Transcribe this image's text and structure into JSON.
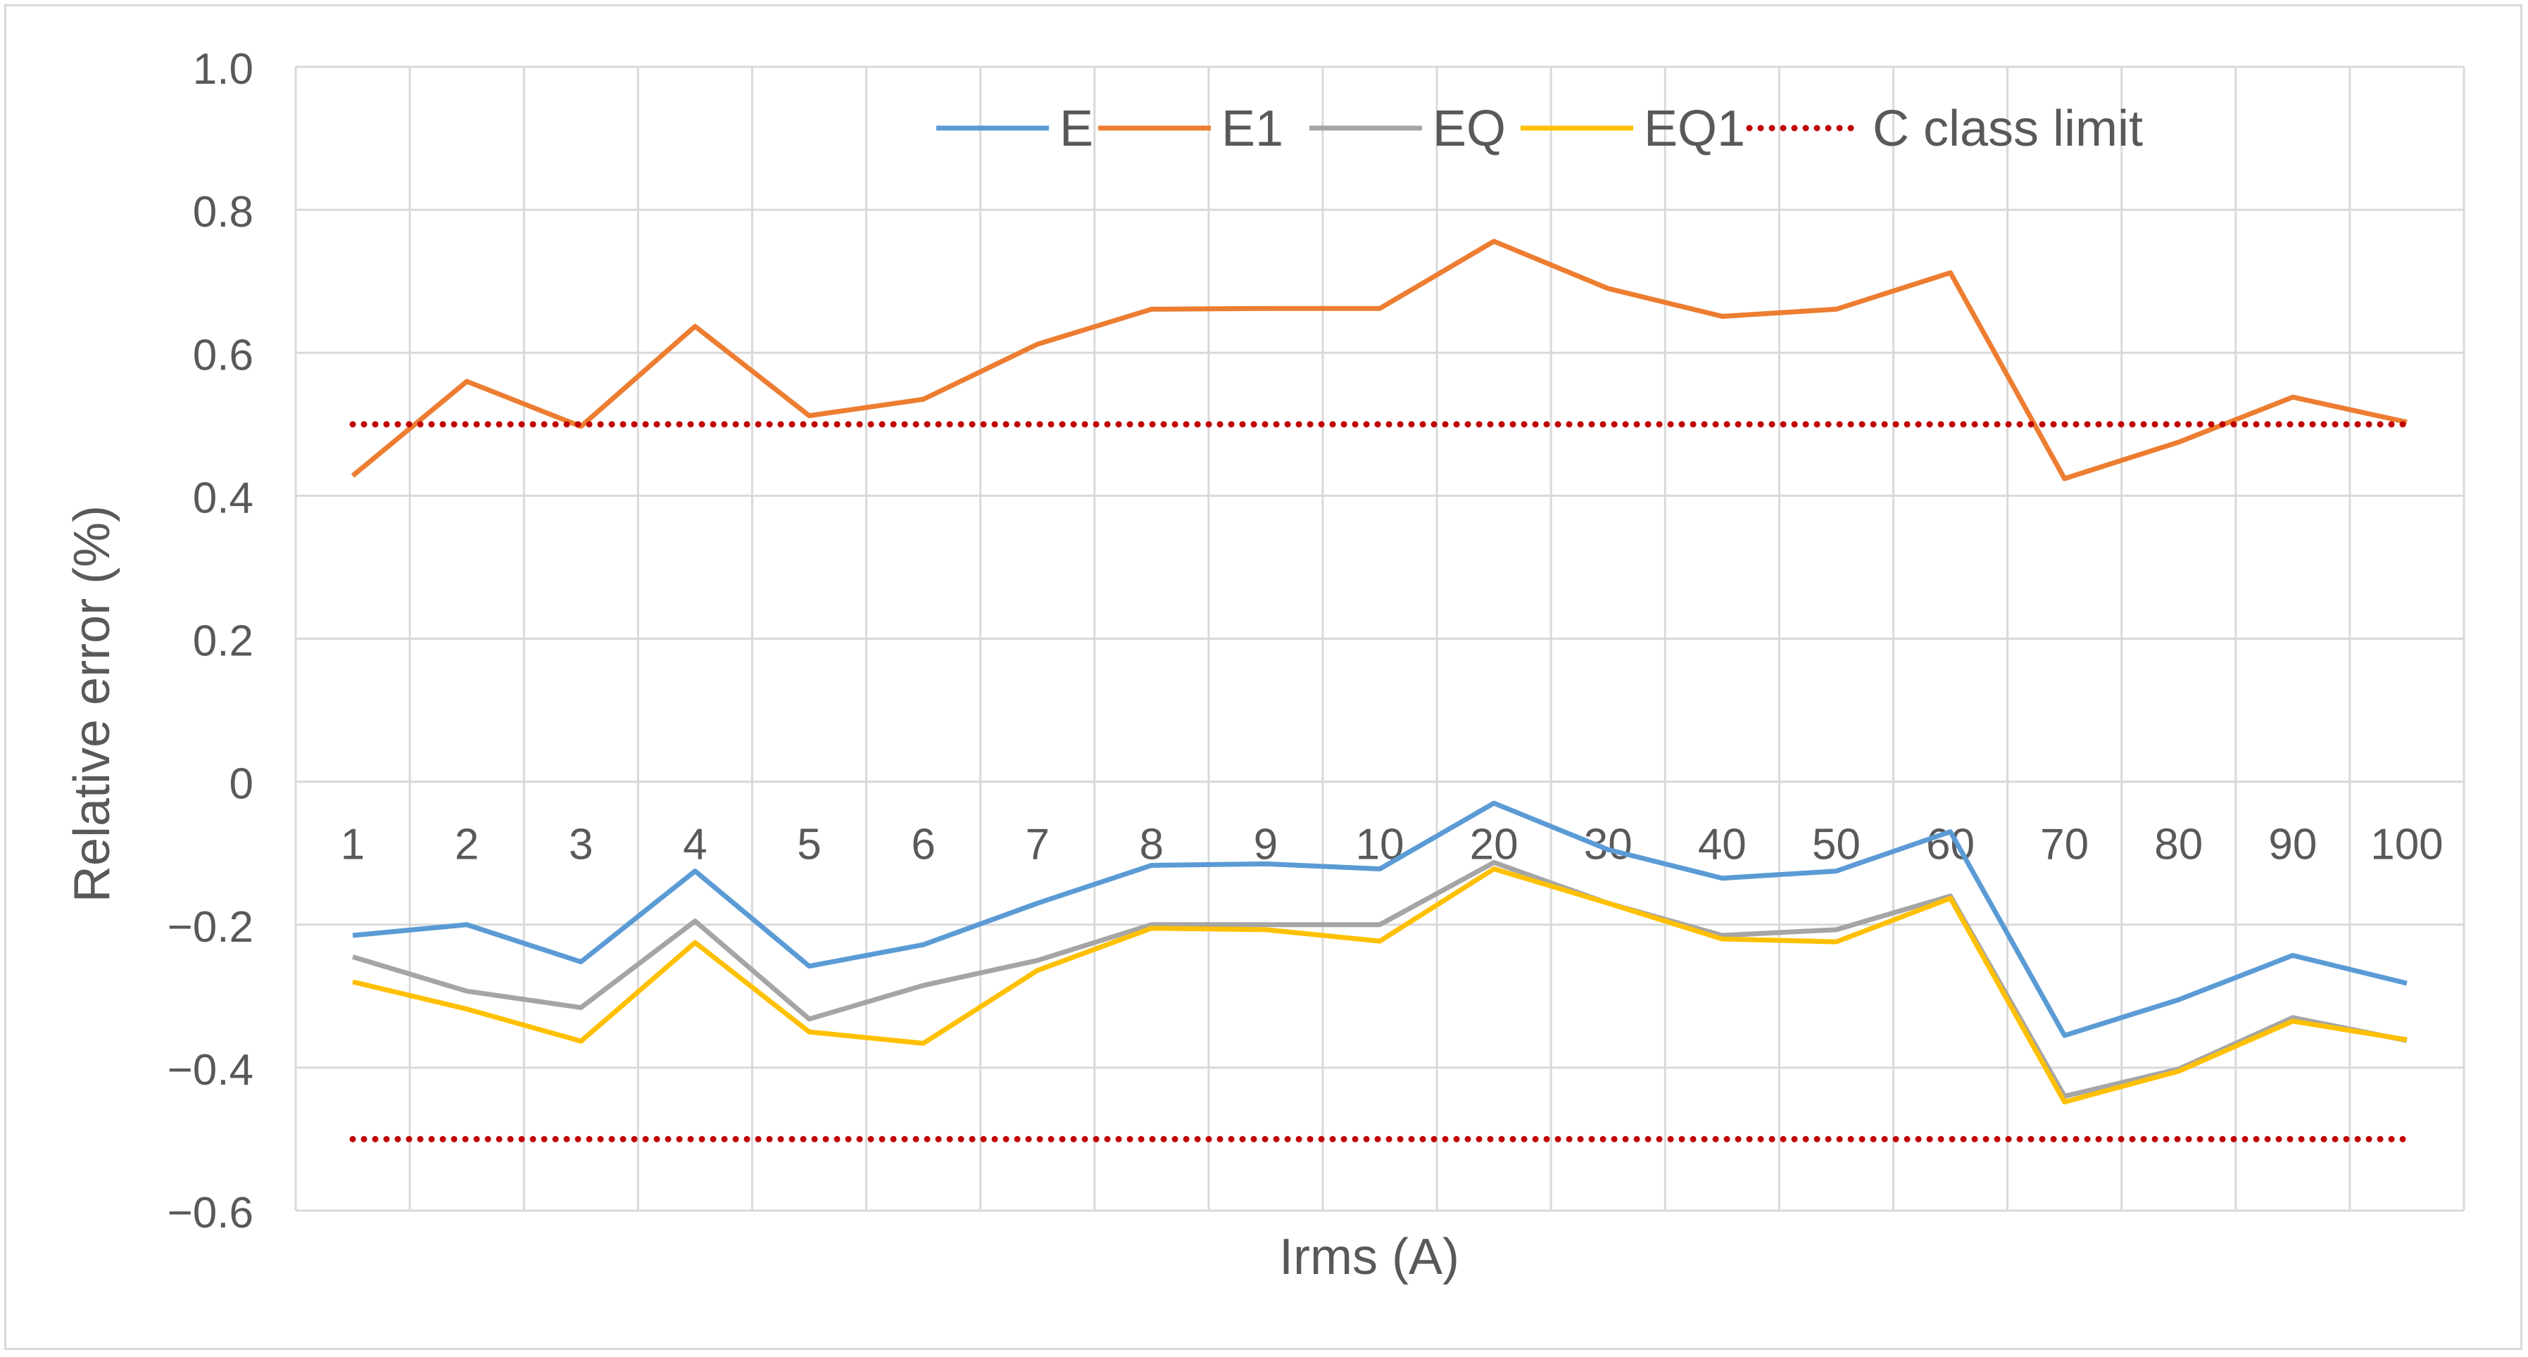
{
  "chart_data": {
    "type": "line",
    "xlabel": "Irms (A)",
    "ylabel": "Relative error (%)",
    "ylim": [
      -0.6,
      1.0
    ],
    "yticks": [
      1.0,
      0.8,
      0.6,
      0.4,
      0.2,
      0,
      -0.2,
      -0.4,
      -0.6
    ],
    "ytick_labels": [
      "1.0",
      "0.8",
      "0.6",
      "0.4",
      "0.2",
      "0",
      "−0.2",
      "−0.4",
      "−0.6"
    ],
    "categories": [
      "1",
      "2",
      "3",
      "4",
      "5",
      "6",
      "7",
      "8",
      "9",
      "10",
      "20",
      "30",
      "40",
      "50",
      "60",
      "70",
      "80",
      "90",
      "100"
    ],
    "grid": true,
    "legend_position": "top",
    "series": [
      {
        "name": "E",
        "color": "#5b9bd5",
        "style": "solid",
        "values": [
          -0.215,
          -0.2,
          -0.252,
          -0.125,
          -0.258,
          -0.228,
          -0.17,
          -0.117,
          -0.115,
          -0.122,
          -0.03,
          -0.095,
          -0.135,
          -0.125,
          -0.07,
          -0.355,
          -0.305,
          -0.243,
          -0.282
        ]
      },
      {
        "name": "E1",
        "color": "#ed7d31",
        "style": "solid",
        "values": [
          0.428,
          0.56,
          0.497,
          0.637,
          0.512,
          0.535,
          0.612,
          0.661,
          0.662,
          0.662,
          0.756,
          0.69,
          0.651,
          0.661,
          0.712,
          0.424,
          0.475,
          0.538,
          0.503
        ]
      },
      {
        "name": "EQ",
        "color": "#a5a5a5",
        "style": "solid",
        "values": [
          -0.245,
          -0.293,
          -0.316,
          -0.195,
          -0.332,
          -0.285,
          -0.25,
          -0.2,
          -0.2,
          -0.2,
          -0.113,
          -0.17,
          -0.215,
          -0.207,
          -0.16,
          -0.44,
          -0.402,
          -0.33,
          -0.362
        ]
      },
      {
        "name": "EQ1",
        "color": "#ffc000",
        "style": "solid",
        "values": [
          -0.28,
          -0.318,
          -0.363,
          -0.225,
          -0.35,
          -0.366,
          -0.264,
          -0.205,
          -0.207,
          -0.223,
          -0.122,
          -0.17,
          -0.22,
          -0.224,
          -0.163,
          -0.448,
          -0.405,
          -0.335,
          -0.361
        ]
      },
      {
        "name": "C class limit",
        "color": "#c00000",
        "style": "dotted",
        "values": [
          0.5,
          0.5,
          0.5,
          0.5,
          0.5,
          0.5,
          0.5,
          0.5,
          0.5,
          0.5,
          0.5,
          0.5,
          0.5,
          0.5,
          0.5,
          0.5,
          0.5,
          0.5,
          0.5
        ]
      },
      {
        "name": "C class limit",
        "color": "#c00000",
        "style": "dotted",
        "in_legend": false,
        "values": [
          -0.5,
          -0.5,
          -0.5,
          -0.5,
          -0.5,
          -0.5,
          -0.5,
          -0.5,
          -0.5,
          -0.5,
          -0.5,
          -0.5,
          -0.5,
          -0.5,
          -0.5,
          -0.5,
          -0.5,
          -0.5,
          -0.5
        ]
      }
    ]
  }
}
